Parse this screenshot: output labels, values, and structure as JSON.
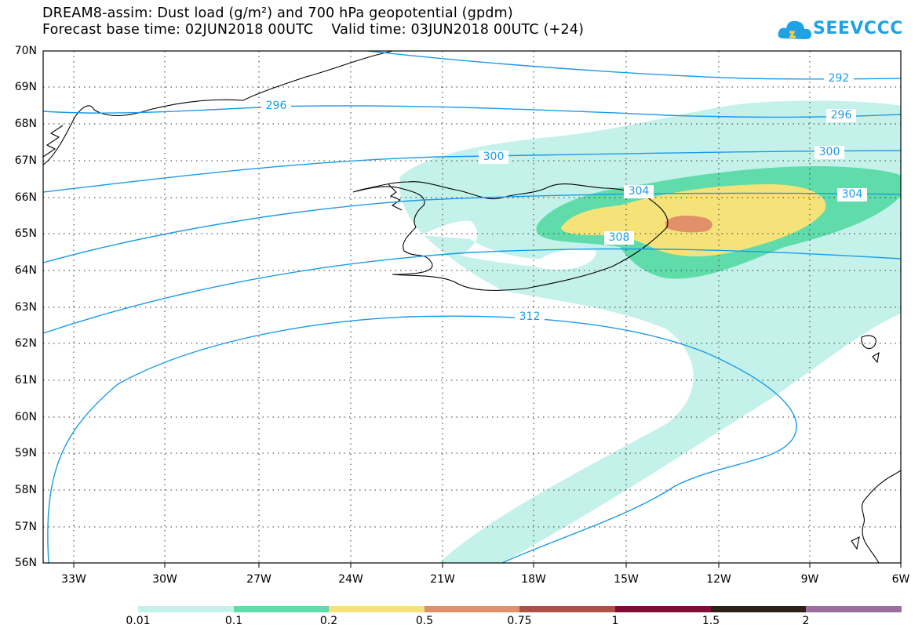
{
  "title": {
    "line1": "DREAM8-assim: Dust load (g/m²) and 700 hPa geopotential (gpdm)",
    "line2": "Forecast base time: 02JUN2018 00UTC    Valid time: 03JUN2018 00UTC (+24)"
  },
  "logo": {
    "text": "SEEVCCC",
    "icon": "cloud-icon",
    "color": "#1fa3e6"
  },
  "map": {
    "lat_labels": [
      "70N",
      "69N",
      "68N",
      "67N",
      "66N",
      "65N",
      "64N",
      "63N",
      "62N",
      "61N",
      "60N",
      "59N",
      "58N",
      "57N",
      "56N"
    ],
    "lon_labels": [
      "33W",
      "30W",
      "27W",
      "24W",
      "21W",
      "18W",
      "15W",
      "12W",
      "9W",
      "6W"
    ],
    "contour_labels": [
      "292",
      "296",
      "296",
      "300",
      "300",
      "304",
      "304",
      "308",
      "312"
    ],
    "contour_color": "#1a9be6"
  },
  "colorbar": {
    "labels": [
      "0.01",
      "0.1",
      "0.2",
      "0.5",
      "0.75",
      "1",
      "1.5",
      "2"
    ],
    "colors": [
      "#c4f1ea",
      "#5fdcaa",
      "#f5e37a",
      "#e2906a",
      "#ad5048",
      "#7e0e36",
      "#2d2017",
      "#9a6e9e"
    ]
  }
}
